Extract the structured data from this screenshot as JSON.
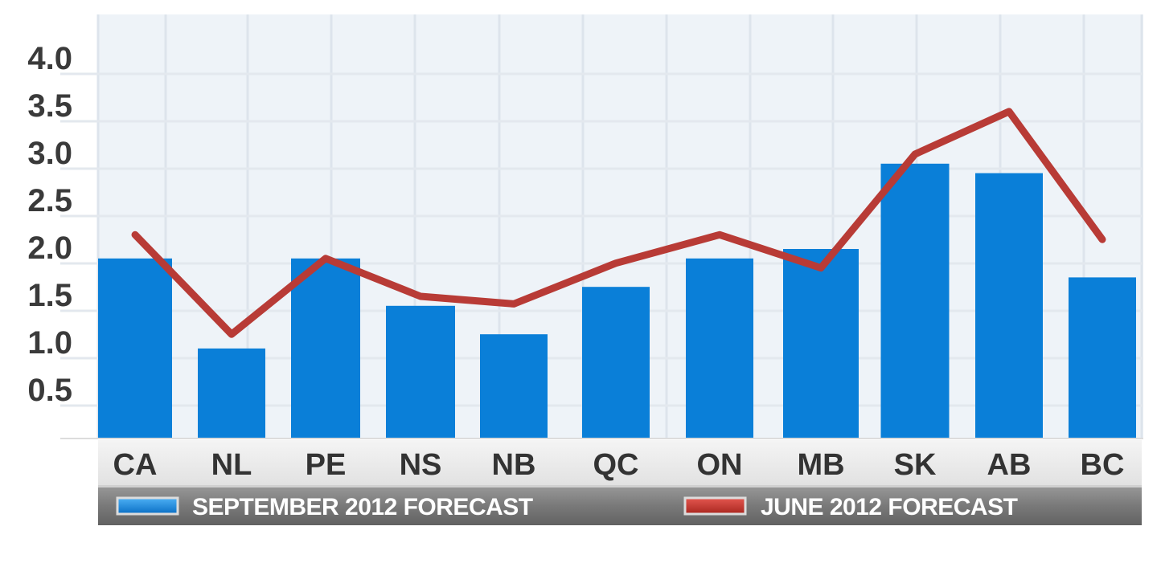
{
  "chart_data": {
    "type": "bar",
    "categories": [
      "CA",
      "NL",
      "PE",
      "NS",
      "NB",
      "QC",
      "ON",
      "MB",
      "SK",
      "AB",
      "BC"
    ],
    "series": [
      {
        "name": "SEPTEMBER 2012 FORECAST",
        "type": "bar",
        "color": "#0a7fd8",
        "values": [
          1.9,
          0.95,
          1.9,
          1.4,
          1.1,
          1.6,
          1.9,
          2.0,
          2.9,
          2.8,
          1.7
        ]
      },
      {
        "name": "JUNE 2012 FORECAST",
        "type": "line",
        "color": "#b83b36",
        "values": [
          2.15,
          1.1,
          1.9,
          1.5,
          1.42,
          1.85,
          2.15,
          1.8,
          3.0,
          3.45,
          2.1
        ]
      }
    ],
    "yticks": [
      "0.5",
      "1.0",
      "1.5",
      "2.0",
      "2.5",
      "3.0",
      "3.5",
      "4.0"
    ],
    "ylim": [
      0,
      4.4
    ],
    "grid": true,
    "legend_position": "bottom"
  }
}
